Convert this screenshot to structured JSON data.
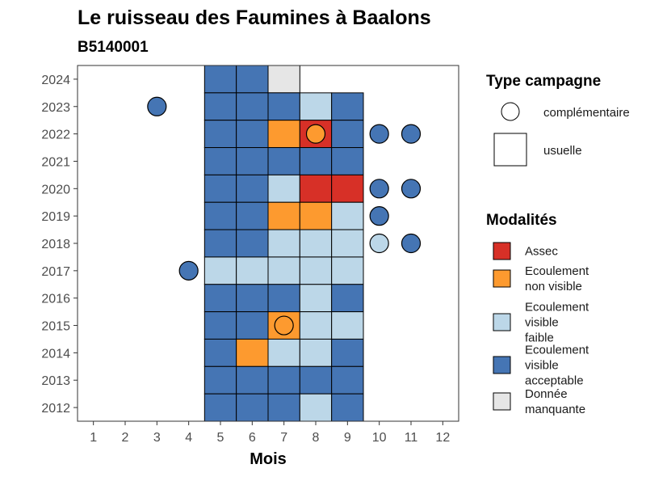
{
  "chart_data": {
    "type": "heatmap",
    "title": "Le ruisseau des Faumines à Baalons",
    "subtitle": "B5140001",
    "xlabel": "Mois",
    "ylabel": "",
    "x_ticks": [
      "1",
      "2",
      "3",
      "4",
      "5",
      "6",
      "7",
      "8",
      "9",
      "10",
      "11",
      "12"
    ],
    "y_ticks": [
      "2012",
      "2013",
      "2014",
      "2015",
      "2016",
      "2017",
      "2018",
      "2019",
      "2020",
      "2021",
      "2022",
      "2023",
      "2024"
    ],
    "xlim": [
      0.5,
      12.5
    ],
    "ylim": [
      2011.5,
      2024.5
    ],
    "grid": false,
    "legend_position": "right",
    "modalites": [
      {
        "key": "assec",
        "label": "Assec",
        "color": "#d73027"
      },
      {
        "key": "nonvisible",
        "label": "Ecoulement non visible",
        "color": "#fd9a2f"
      },
      {
        "key": "faible",
        "label": "Ecoulement visible faible",
        "color": "#bcd7e8"
      },
      {
        "key": "acceptable",
        "label": "Ecoulement visible acceptable",
        "color": "#4575b4"
      },
      {
        "key": "manquante",
        "label": "Donnée manquante",
        "color": "#e6e6e6"
      }
    ],
    "campagne_types": [
      {
        "key": "complementaire",
        "label": "complémentaire",
        "shape": "circle"
      },
      {
        "key": "usuelle",
        "label": "usuelle",
        "shape": "square"
      }
    ],
    "legend_titles": {
      "campagne": "Type campagne",
      "modalites": "Modalités"
    },
    "usuelle": [
      {
        "year": 2024,
        "values": {
          "5": "acceptable",
          "6": "acceptable",
          "7": "manquante"
        }
      },
      {
        "year": 2023,
        "values": {
          "5": "acceptable",
          "6": "acceptable",
          "7": "acceptable",
          "8": "faible",
          "9": "acceptable"
        }
      },
      {
        "year": 2022,
        "values": {
          "5": "acceptable",
          "6": "acceptable",
          "7": "nonvisible",
          "8": "assec",
          "9": "acceptable"
        }
      },
      {
        "year": 2021,
        "values": {
          "5": "acceptable",
          "6": "acceptable",
          "7": "acceptable",
          "8": "acceptable",
          "9": "acceptable"
        }
      },
      {
        "year": 2020,
        "values": {
          "5": "acceptable",
          "6": "acceptable",
          "7": "faible",
          "8": "assec",
          "9": "assec"
        }
      },
      {
        "year": 2019,
        "values": {
          "5": "acceptable",
          "6": "acceptable",
          "7": "nonvisible",
          "8": "nonvisible",
          "9": "faible"
        }
      },
      {
        "year": 2018,
        "values": {
          "5": "acceptable",
          "6": "acceptable",
          "7": "faible",
          "8": "faible",
          "9": "faible"
        }
      },
      {
        "year": 2017,
        "values": {
          "5": "faible",
          "6": "faible",
          "7": "faible",
          "8": "faible",
          "9": "faible"
        }
      },
      {
        "year": 2016,
        "values": {
          "5": "acceptable",
          "6": "acceptable",
          "7": "acceptable",
          "8": "faible",
          "9": "acceptable"
        }
      },
      {
        "year": 2015,
        "values": {
          "5": "acceptable",
          "6": "acceptable",
          "7": "nonvisible",
          "8": "faible",
          "9": "faible"
        }
      },
      {
        "year": 2014,
        "values": {
          "5": "acceptable",
          "6": "nonvisible",
          "7": "faible",
          "8": "faible",
          "9": "acceptable"
        }
      },
      {
        "year": 2013,
        "values": {
          "5": "acceptable",
          "6": "acceptable",
          "7": "acceptable",
          "8": "acceptable",
          "9": "acceptable"
        }
      },
      {
        "year": 2012,
        "values": {
          "5": "acceptable",
          "6": "acceptable",
          "7": "acceptable",
          "8": "faible",
          "9": "acceptable"
        }
      }
    ],
    "complementaire": [
      {
        "year": 2023,
        "month": 3,
        "value": "acceptable"
      },
      {
        "year": 2022,
        "month": 8,
        "value": "nonvisible"
      },
      {
        "year": 2022,
        "month": 10,
        "value": "acceptable"
      },
      {
        "year": 2022,
        "month": 11,
        "value": "acceptable"
      },
      {
        "year": 2020,
        "month": 10,
        "value": "acceptable"
      },
      {
        "year": 2020,
        "month": 11,
        "value": "acceptable"
      },
      {
        "year": 2019,
        "month": 10,
        "value": "acceptable"
      },
      {
        "year": 2018,
        "month": 10,
        "value": "faible"
      },
      {
        "year": 2018,
        "month": 11,
        "value": "acceptable"
      },
      {
        "year": 2017,
        "month": 4,
        "value": "acceptable"
      },
      {
        "year": 2015,
        "month": 7,
        "value": "nonvisible"
      }
    ]
  }
}
